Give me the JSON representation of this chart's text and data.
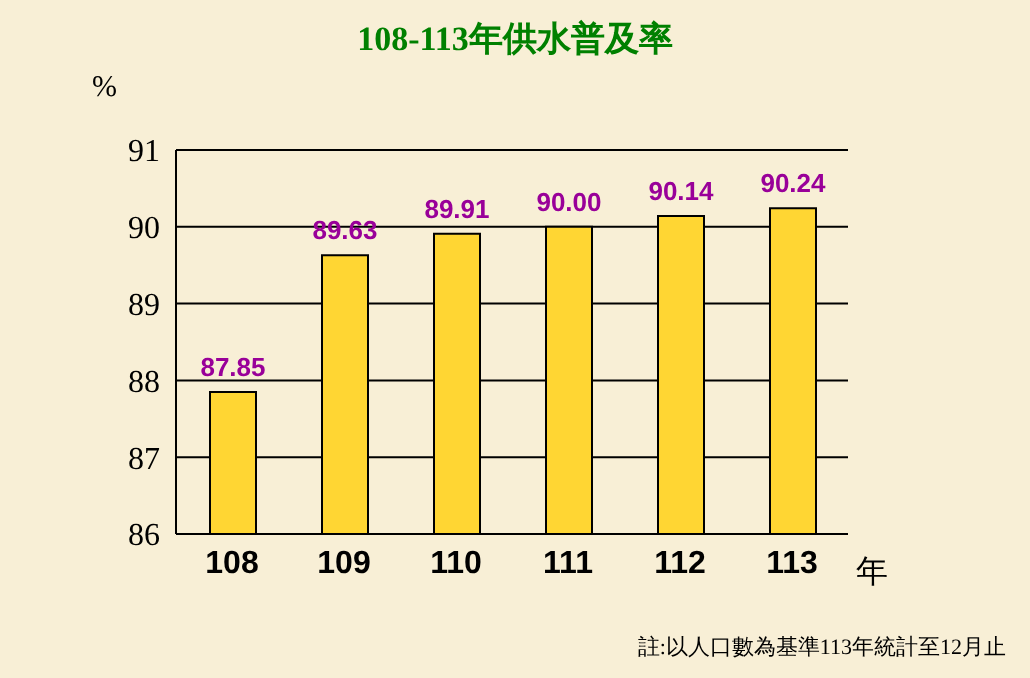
{
  "chart_data": {
    "type": "bar",
    "title": "108-113年供水普及率",
    "ylabel": "%",
    "xlabel": "年",
    "categories": [
      "108",
      "109",
      "110",
      "111",
      "112",
      "113"
    ],
    "values": [
      87.85,
      89.63,
      89.91,
      90.0,
      90.14,
      90.24
    ],
    "value_labels": [
      "87.85",
      "89.63",
      "89.91",
      "90.00",
      "90.14",
      "90.24"
    ],
    "color": "#ffd633",
    "ylim": [
      86,
      91
    ],
    "yticks": [
      86,
      87,
      88,
      89,
      90,
      91
    ],
    "grid": "y",
    "annotations": [
      "註:以人口數為基準113年統計至12月止"
    ]
  }
}
